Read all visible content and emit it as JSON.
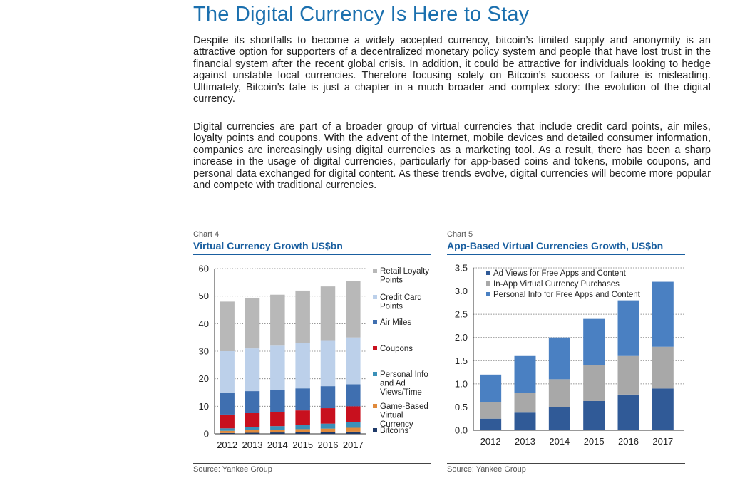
{
  "heading": "The Digital Currency Is Here to Stay",
  "paragraphs": [
    "Despite its shortfalls to become a widely accepted currency, bitcoin’s limited supply and anonymity is an attractive option for supporters of a decentralized monetary policy system and people that have lost trust in the financial system after the recent global crisis. In addition, it could be attractive for individuals looking to hedge against unstable local currencies. Therefore focusing solely on Bitcoin’s success or failure is misleading. Ultimately, Bitcoin’s tale is just a chapter in a much broader and complex story: the evolution of the digital currency.",
    "Digital currencies are part of a broader group of virtual currencies that include credit card points, air miles, loyalty points and coupons. With the advent of the Internet, mobile devices and detailed consumer information, companies are increasingly using digital currencies as a marketing tool. As a result, there has been a sharp increase in the usage of digital currencies, particularly for app-based coins and tokens, mobile coupons, and personal data exchanged for digital content. As these trends evolve, digital currencies will become more popular and compete with traditional currencies."
  ],
  "charts": [
    {
      "label": "Chart 4",
      "title": "Virtual Currency Growth US$bn",
      "source": "Source: Yankee Group"
    },
    {
      "label": "Chart 5",
      "title": "App-Based Virtual Currencies Growth, US$bn",
      "source": "Source: Yankee Group"
    }
  ],
  "colors": {
    "heading": "#1a6fae",
    "rule": "#1a5fa0",
    "retail_loyalty": "#b8b8b8",
    "credit_card": "#bcd0ea",
    "air_miles": "#3f6fb0",
    "coupons": "#c8101e",
    "personal_info": "#3a90b8",
    "game_based": "#e08a3c",
    "bitcoins": "#1f3a68",
    "ad_views": "#305a97",
    "in_app": "#a8a8a8",
    "personal_info_free": "#4a80c2"
  },
  "chart_data": [
    {
      "type": "bar",
      "stacked": true,
      "title": "Virtual Currency Growth US$bn",
      "categories": [
        "2012",
        "2013",
        "2014",
        "2015",
        "2016",
        "2017"
      ],
      "ylim": [
        0,
        60
      ],
      "yticks": [
        "0",
        "10",
        "20",
        "30",
        "40",
        "50",
        "60"
      ],
      "grid": true,
      "legend_position": "right",
      "series": [
        {
          "name": "Bitcoins",
          "legend": [
            "Bitcoins"
          ],
          "color": "#1f3a68",
          "values": [
            0.3,
            0.4,
            0.5,
            0.6,
            0.7,
            0.8
          ]
        },
        {
          "name": "Game-Based Virtual Currency",
          "legend": [
            "Game-Based",
            "Virtual",
            "Currency"
          ],
          "color": "#e08a3c",
          "values": [
            0.8,
            0.9,
            1.0,
            1.1,
            1.2,
            1.4
          ]
        },
        {
          "name": "Personal Info and Ad Views/Time",
          "legend": [
            "Personal Info",
            "and Ad",
            "Views/Time"
          ],
          "color": "#3a90b8",
          "values": [
            0.9,
            1.1,
            1.3,
            1.5,
            1.8,
            2.1
          ]
        },
        {
          "name": "Coupons",
          "legend": [
            "Coupons"
          ],
          "color": "#c8101e",
          "values": [
            5,
            5.1,
            5.2,
            5.3,
            5.6,
            5.7
          ]
        },
        {
          "name": "Air Miles",
          "legend": [
            "Air Miles"
          ],
          "color": "#3f6fb0",
          "values": [
            8,
            8,
            8,
            8,
            8,
            8
          ]
        },
        {
          "name": "Credit Card Points",
          "legend": [
            "Credit Card",
            "Points"
          ],
          "color": "#bcd0ea",
          "values": [
            15,
            15.5,
            16,
            16.5,
            16.7,
            17
          ]
        },
        {
          "name": "Retail Loyalty Points",
          "legend": [
            "Retail Loyalty",
            "Points"
          ],
          "color": "#b8b8b8",
          "values": [
            18,
            18.4,
            18.5,
            19,
            19.5,
            20.5
          ]
        }
      ]
    },
    {
      "type": "bar",
      "stacked": true,
      "title": "App-Based Virtual Currencies Growth, US$bn",
      "categories": [
        "2012",
        "2013",
        "2014",
        "2015",
        "2016",
        "2017"
      ],
      "ylim": [
        0,
        3.5
      ],
      "yticks": [
        "0.0",
        "0.5",
        "1.0",
        "1.5",
        "2.0",
        "2.5",
        "3.0",
        "3.5"
      ],
      "grid": true,
      "legend_position": "top-left",
      "series": [
        {
          "name": "Ad Views for Free Apps and Content",
          "legend": [
            "Ad Views for Free Apps and Content"
          ],
          "color": "#305a97",
          "values": [
            0.25,
            0.38,
            0.5,
            0.63,
            0.77,
            0.9
          ]
        },
        {
          "name": "In-App Virtual Currency Purchases",
          "legend": [
            "In-App Virtual Currency Purchases"
          ],
          "color": "#a8a8a8",
          "values": [
            0.35,
            0.42,
            0.6,
            0.77,
            0.83,
            0.9
          ]
        },
        {
          "name": "Personal Info for Free Apps and Content",
          "legend": [
            "Personal Info for Free Apps and Content"
          ],
          "color": "#4a80c2",
          "values": [
            0.6,
            0.8,
            0.9,
            1.0,
            1.2,
            1.4
          ]
        }
      ]
    }
  ]
}
